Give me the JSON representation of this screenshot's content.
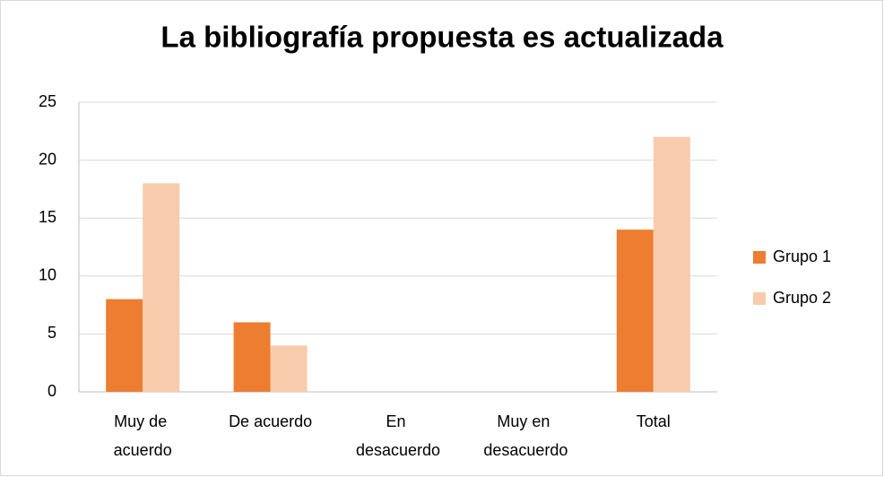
{
  "chart_data": {
    "type": "bar",
    "title": "La bibliografía propuesta es actualizada",
    "categories": [
      "Muy de acuerdo",
      "De acuerdo",
      "En desacuerdo",
      "Muy en desacuerdo",
      "Total"
    ],
    "series": [
      {
        "name": "Grupo 1",
        "color": "#ed7d31",
        "values": [
          8,
          6,
          0,
          0,
          14
        ]
      },
      {
        "name": "Grupo 2",
        "color": "#f8cbad",
        "values": [
          18,
          4,
          0,
          0,
          22
        ]
      }
    ],
    "ylim": [
      0,
      25
    ],
    "yticks": [
      0,
      5,
      10,
      15,
      20,
      25
    ],
    "grid": true,
    "legend": "right"
  }
}
